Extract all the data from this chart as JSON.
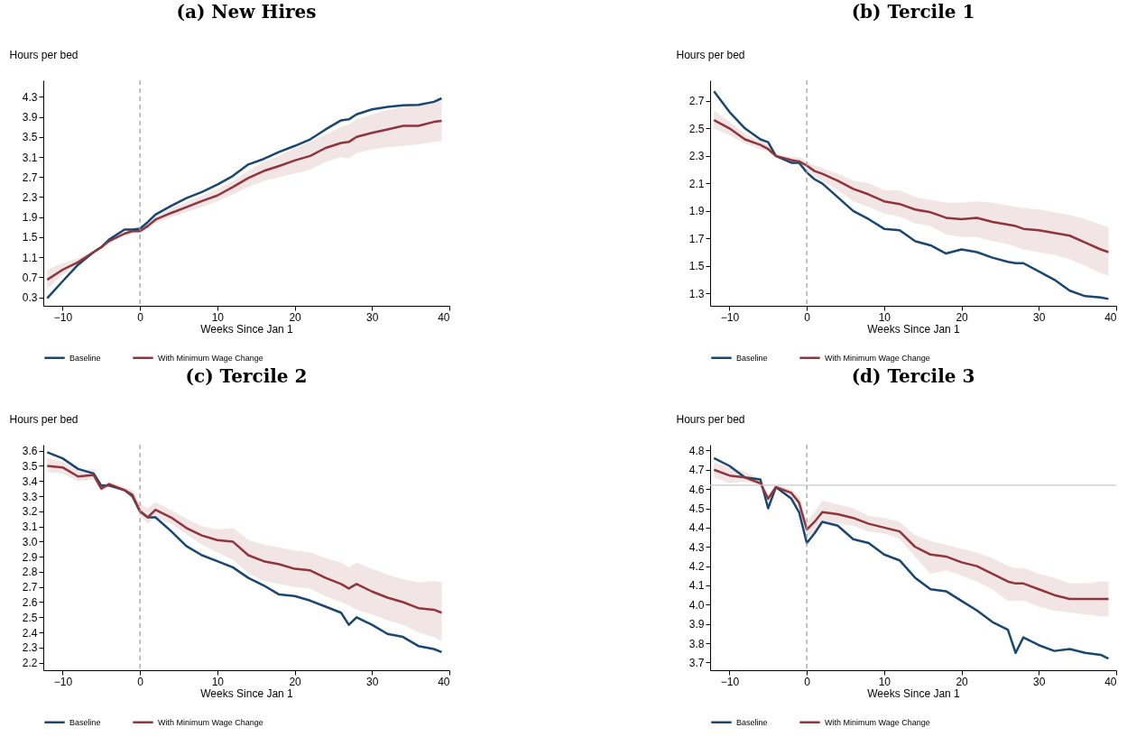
{
  "chart_data": [
    {
      "type": "line",
      "title": "(a) New Hires",
      "xlabel": "Weeks Since Jan 1",
      "ylabel": "Hours per bed",
      "legend": "bottom",
      "grid": false,
      "line_style": "solid",
      "xlim": [
        -12.5,
        40
      ],
      "xticks": [
        -10,
        0,
        10,
        20,
        30,
        40
      ],
      "ylim": [
        0.13,
        4.63
      ],
      "yticks": [
        0.3,
        0.7,
        1.1,
        1.5,
        1.9,
        2.3,
        2.7,
        3.1,
        3.5,
        3.9,
        4.3
      ],
      "x": [
        -12,
        -10,
        -8,
        -6,
        -5,
        -4,
        -2,
        -1,
        0,
        1,
        2,
        4,
        6,
        8,
        10,
        12,
        14,
        16,
        18,
        20,
        22,
        24,
        26,
        27,
        28,
        30,
        32,
        34,
        36,
        38,
        39
      ],
      "ref_lines": [
        {
          "axis": "x",
          "value": 0,
          "line_style": "dashed",
          "color": "#999999"
        }
      ],
      "series": [
        {
          "name": "Baseline",
          "color": "#1a476f",
          "values": [
            0.28,
            0.62,
            0.95,
            1.2,
            1.3,
            1.45,
            1.65,
            1.65,
            1.67,
            1.8,
            1.95,
            2.12,
            2.28,
            2.4,
            2.55,
            2.72,
            2.95,
            3.06,
            3.2,
            3.32,
            3.45,
            3.65,
            3.83,
            3.85,
            3.95,
            4.05,
            4.1,
            4.13,
            4.14,
            4.2,
            4.27
          ]
        },
        {
          "name": "With Minimum Wage Change",
          "color": "#90353b",
          "values": [
            0.65,
            0.85,
            1.0,
            1.2,
            1.3,
            1.42,
            1.57,
            1.62,
            1.62,
            1.72,
            1.85,
            1.98,
            2.1,
            2.22,
            2.33,
            2.5,
            2.68,
            2.82,
            2.92,
            3.03,
            3.12,
            3.28,
            3.38,
            3.4,
            3.5,
            3.58,
            3.65,
            3.72,
            3.72,
            3.8,
            3.82
          ],
          "lower": [
            0.47,
            0.75,
            0.95,
            1.17,
            1.27,
            1.4,
            1.53,
            1.57,
            1.6,
            1.67,
            1.78,
            1.9,
            2.0,
            2.1,
            2.22,
            2.35,
            2.5,
            2.62,
            2.7,
            2.77,
            2.85,
            3.0,
            3.1,
            3.07,
            3.18,
            3.25,
            3.3,
            3.32,
            3.35,
            3.4,
            3.42
          ],
          "upper": [
            0.85,
            0.98,
            1.08,
            1.22,
            1.33,
            1.45,
            1.6,
            1.65,
            1.67,
            1.78,
            1.92,
            2.07,
            2.2,
            2.33,
            2.45,
            2.62,
            2.82,
            3.0,
            3.12,
            3.27,
            3.4,
            3.55,
            3.7,
            3.75,
            3.85,
            3.95,
            4.03,
            4.1,
            4.15,
            4.2,
            4.23
          ]
        }
      ]
    },
    {
      "type": "line",
      "title": "(b) Tercile 1",
      "xlabel": "Weeks Since Jan 1",
      "ylabel": "Hours per bed",
      "legend": "bottom",
      "grid": false,
      "line_style": "solid",
      "xlim": [
        -12.5,
        40
      ],
      "xticks": [
        -10,
        0,
        10,
        20,
        30,
        40
      ],
      "ylim": [
        1.21,
        2.85
      ],
      "yticks": [
        1.3,
        1.5,
        1.7,
        1.9,
        2.1,
        2.3,
        2.5,
        2.7
      ],
      "x": [
        -12,
        -10,
        -8,
        -6,
        -5,
        -4,
        -2,
        -1,
        0,
        1,
        2,
        4,
        6,
        8,
        10,
        12,
        14,
        16,
        18,
        20,
        22,
        24,
        26,
        27,
        28,
        30,
        32,
        34,
        36,
        38,
        39
      ],
      "ref_lines": [
        {
          "axis": "x",
          "value": 0,
          "line_style": "dashed",
          "color": "#999999"
        }
      ],
      "series": [
        {
          "name": "Baseline",
          "color": "#1a476f",
          "values": [
            2.77,
            2.62,
            2.5,
            2.42,
            2.4,
            2.3,
            2.25,
            2.25,
            2.18,
            2.13,
            2.1,
            2.0,
            1.9,
            1.84,
            1.77,
            1.76,
            1.68,
            1.65,
            1.59,
            1.62,
            1.6,
            1.56,
            1.53,
            1.52,
            1.52,
            1.46,
            1.4,
            1.32,
            1.28,
            1.27,
            1.26
          ]
        },
        {
          "name": "With Minimum Wage Change",
          "color": "#90353b",
          "values": [
            2.56,
            2.5,
            2.42,
            2.38,
            2.35,
            2.3,
            2.27,
            2.26,
            2.23,
            2.19,
            2.17,
            2.12,
            2.06,
            2.02,
            1.97,
            1.95,
            1.91,
            1.89,
            1.85,
            1.84,
            1.85,
            1.82,
            1.8,
            1.79,
            1.77,
            1.76,
            1.74,
            1.72,
            1.67,
            1.62,
            1.6
          ],
          "lower": [
            2.5,
            2.45,
            2.39,
            2.35,
            2.33,
            2.29,
            2.25,
            2.24,
            2.2,
            2.15,
            2.12,
            2.05,
            1.97,
            1.93,
            1.88,
            1.86,
            1.81,
            1.79,
            1.73,
            1.71,
            1.71,
            1.68,
            1.66,
            1.64,
            1.62,
            1.6,
            1.58,
            1.55,
            1.5,
            1.45,
            1.43
          ],
          "upper": [
            2.63,
            2.55,
            2.46,
            2.41,
            2.38,
            2.31,
            2.29,
            2.29,
            2.26,
            2.23,
            2.21,
            2.17,
            2.12,
            2.1,
            2.05,
            2.05,
            2.0,
            1.98,
            1.96,
            1.96,
            1.97,
            1.96,
            1.94,
            1.93,
            1.92,
            1.91,
            1.89,
            1.87,
            1.84,
            1.8,
            1.78
          ]
        }
      ]
    },
    {
      "type": "line",
      "title": "(c) Tercile 2",
      "xlabel": "Weeks Since Jan 1",
      "ylabel": "Hours per bed",
      "legend": "bottom",
      "grid": false,
      "line_style": "solid",
      "xlim": [
        -12.5,
        40
      ],
      "xticks": [
        -10,
        0,
        10,
        20,
        30,
        40
      ],
      "ylim": [
        2.15,
        3.64
      ],
      "yticks": [
        2.2,
        2.3,
        2.4,
        2.5,
        2.6,
        2.7,
        2.8,
        2.9,
        {
          "value": 3,
          "label": "3.0"
        },
        3.1,
        3.2,
        3.3,
        3.4,
        3.5,
        3.6
      ],
      "x": [
        -12,
        -10,
        -8,
        -6,
        -5,
        -4,
        -2,
        -1,
        0,
        1,
        2,
        4,
        6,
        8,
        10,
        12,
        14,
        16,
        18,
        20,
        22,
        24,
        26,
        27,
        28,
        30,
        32,
        34,
        36,
        38,
        39
      ],
      "ref_lines": [
        {
          "axis": "x",
          "value": 0,
          "line_style": "dashed",
          "color": "#999999"
        }
      ],
      "series": [
        {
          "name": "Baseline",
          "color": "#1a476f",
          "values": [
            3.59,
            3.55,
            3.48,
            3.45,
            3.37,
            3.37,
            3.34,
            3.3,
            3.2,
            3.16,
            3.16,
            3.07,
            2.97,
            2.91,
            2.87,
            2.83,
            2.76,
            2.71,
            2.65,
            2.64,
            2.61,
            2.57,
            2.53,
            2.45,
            2.5,
            2.45,
            2.39,
            2.37,
            2.31,
            2.29,
            2.27
          ]
        },
        {
          "name": "With Minimum Wage Change",
          "color": "#90353b",
          "values": [
            3.5,
            3.49,
            3.43,
            3.44,
            3.35,
            3.38,
            3.34,
            3.31,
            3.2,
            3.16,
            3.21,
            3.16,
            3.09,
            3.04,
            3.01,
            3.0,
            2.91,
            2.87,
            2.85,
            2.82,
            2.81,
            2.76,
            2.72,
            2.69,
            2.72,
            2.67,
            2.63,
            2.6,
            2.56,
            2.55,
            2.53
          ],
          "lower": [
            3.46,
            3.45,
            3.4,
            3.41,
            3.33,
            3.37,
            3.33,
            3.29,
            3.17,
            3.12,
            3.16,
            3.12,
            3.05,
            2.98,
            2.93,
            2.88,
            2.79,
            2.74,
            2.72,
            2.7,
            2.69,
            2.64,
            2.6,
            2.58,
            2.55,
            2.52,
            2.48,
            2.45,
            2.4,
            2.37,
            2.34
          ],
          "upper": [
            3.55,
            3.53,
            3.47,
            3.48,
            3.36,
            3.39,
            3.36,
            3.34,
            3.25,
            3.22,
            3.26,
            3.21,
            3.15,
            3.1,
            3.08,
            3.09,
            3.01,
            2.98,
            2.96,
            2.94,
            2.93,
            2.89,
            2.86,
            2.83,
            2.86,
            2.82,
            2.78,
            2.75,
            2.73,
            2.74,
            2.73
          ]
        }
      ]
    },
    {
      "type": "line",
      "title": "(d) Tercile 3",
      "xlabel": "Weeks Since Jan 1",
      "ylabel": "Hours per bed",
      "legend": "bottom",
      "grid": false,
      "line_style": "solid",
      "xlim": [
        -12.5,
        40
      ],
      "xticks": [
        -10,
        0,
        10,
        20,
        30,
        40
      ],
      "ylim": [
        3.66,
        4.83
      ],
      "yticks": [
        3.7,
        3.8,
        3.9,
        {
          "value": 4,
          "label": "4.0"
        },
        4.1,
        4.2,
        4.3,
        4.4,
        4.5,
        4.6,
        4.7,
        4.8
      ],
      "x": [
        -12,
        -10,
        -8,
        -6,
        -5,
        -4,
        -2,
        -1,
        0,
        1,
        2,
        4,
        6,
        8,
        10,
        12,
        14,
        16,
        18,
        20,
        22,
        24,
        26,
        27,
        28,
        30,
        32,
        34,
        36,
        38,
        39
      ],
      "ref_lines": [
        {
          "axis": "x",
          "value": 0,
          "line_style": "dashed",
          "color": "#999999"
        },
        {
          "axis": "y",
          "value": 4.62,
          "line_style": "solid",
          "color": "#c8c8c8"
        }
      ],
      "series": [
        {
          "name": "Baseline",
          "color": "#1a476f",
          "values": [
            4.76,
            4.72,
            4.66,
            4.65,
            4.5,
            4.61,
            4.55,
            4.48,
            4.32,
            4.37,
            4.43,
            4.41,
            4.34,
            4.32,
            4.26,
            4.23,
            4.14,
            4.08,
            4.07,
            4.02,
            3.97,
            3.91,
            3.87,
            3.75,
            3.83,
            3.79,
            3.76,
            3.77,
            3.75,
            3.74,
            3.72
          ]
        },
        {
          "name": "With Minimum Wage Change",
          "color": "#90353b",
          "values": [
            4.7,
            4.67,
            4.66,
            4.63,
            4.55,
            4.61,
            4.58,
            4.53,
            4.39,
            4.43,
            4.48,
            4.47,
            4.45,
            4.42,
            4.4,
            4.38,
            4.3,
            4.26,
            4.25,
            4.22,
            4.2,
            4.16,
            4.12,
            4.11,
            4.11,
            4.08,
            4.05,
            4.03,
            4.03,
            4.03,
            4.03
          ],
          "lower": [
            4.66,
            4.63,
            4.64,
            4.62,
            4.54,
            4.6,
            4.56,
            4.5,
            4.35,
            4.37,
            4.42,
            4.42,
            4.41,
            4.38,
            4.37,
            4.34,
            4.25,
            4.16,
            4.18,
            4.15,
            4.12,
            4.08,
            4.02,
            4.02,
            4.02,
            3.99,
            3.97,
            3.96,
            3.95,
            3.94,
            3.94
          ],
          "upper": [
            4.74,
            4.71,
            4.69,
            4.65,
            4.57,
            4.62,
            4.6,
            4.56,
            4.43,
            4.48,
            4.54,
            4.52,
            4.5,
            4.46,
            4.45,
            4.43,
            4.36,
            4.33,
            4.31,
            4.29,
            4.27,
            4.24,
            4.2,
            4.19,
            4.19,
            4.16,
            4.14,
            4.11,
            4.11,
            4.12,
            4.12
          ]
        }
      ]
    }
  ]
}
